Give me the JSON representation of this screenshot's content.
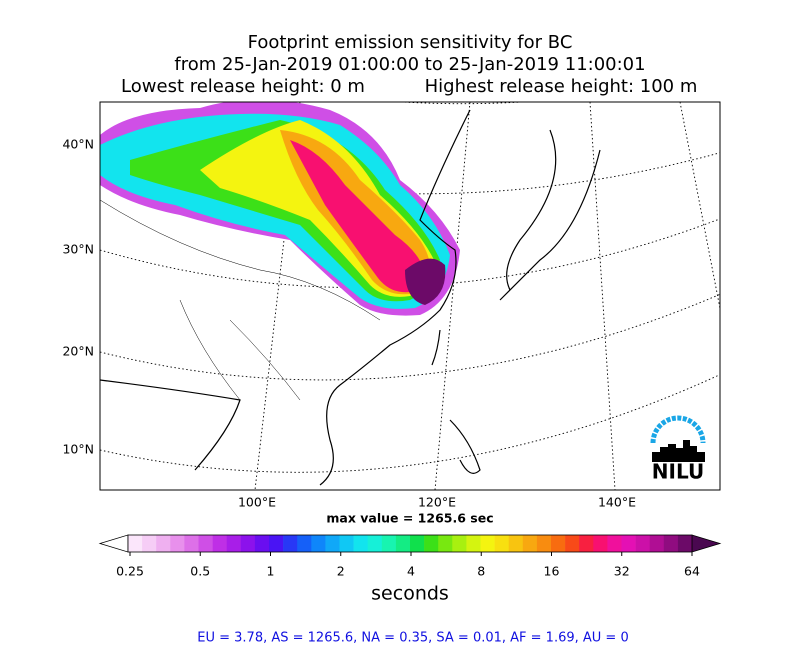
{
  "title": [
    "Footprint emission sensitivity for BC",
    "from 25-Jan-2019 01:00:00 to 25-Jan-2019 11:00:01",
    "Lowest release height: 0 m",
    "Highest release height: 100 m"
  ],
  "lat_labels": [
    "40°N",
    "30°N",
    "20°N",
    "10°N"
  ],
  "lon_labels": [
    "100°E",
    "120°E",
    "140°E"
  ],
  "max_value": "max value = 1265.6 sec",
  "logo": "NILU",
  "colorbar": {
    "ticks": [
      "0.25",
      "0.5",
      "1",
      "2",
      "4",
      "8",
      "16",
      "32",
      "64"
    ],
    "label": "seconds",
    "colors": [
      "#ffffff",
      "#fbe6fb",
      "#f6cdf6",
      "#efb0f0",
      "#e890ec",
      "#dd70e8",
      "#cf4fe6",
      "#bf2fe6",
      "#a81ee8",
      "#8c12ec",
      "#6a0ef0",
      "#4a14f4",
      "#2838f6",
      "#1560f8",
      "#0f86fa",
      "#10a8f8",
      "#10c8f4",
      "#12e4ee",
      "#16f0d8",
      "#18f4b0",
      "#14ec84",
      "#10e04c",
      "#3ce018",
      "#78e810",
      "#a8f010",
      "#d4f410",
      "#f4f410",
      "#f8e010",
      "#f8c410",
      "#f8a810",
      "#f88c10",
      "#f86c10",
      "#f84a18",
      "#f82040",
      "#f81070",
      "#f0109c",
      "#e410b4",
      "#cc10a8",
      "#b00e94",
      "#900c80",
      "#6c0a68",
      "#4a0850"
    ]
  },
  "footer": "EU = 3.78,  AS = 1265.6,  NA = 0.35,  SA = 0.01,  AF = 1.69,  AU = 0"
}
